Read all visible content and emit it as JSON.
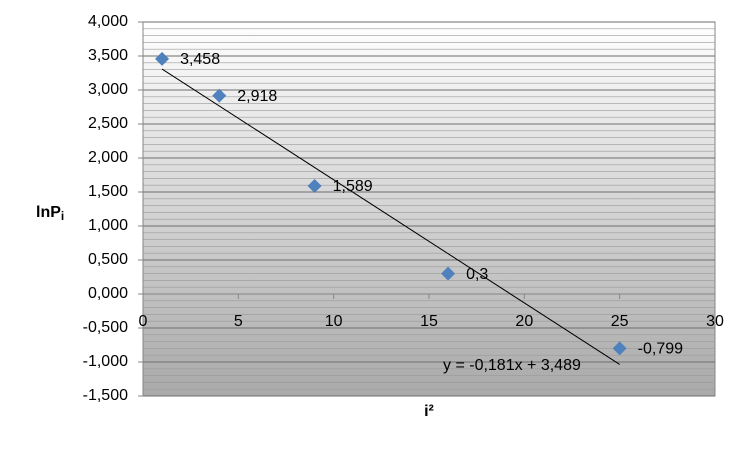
{
  "chart_data": {
    "type": "scatter",
    "x_label": "i²",
    "y_label": "lnP",
    "y_label_sub": "i",
    "series": [
      {
        "name": "lnPi",
        "color": "#4f81bd",
        "x": [
          1,
          4,
          9,
          16,
          25
        ],
        "values": [
          3.458,
          2.918,
          1.589,
          0.3,
          -0.799
        ],
        "value_labels": [
          "3,458",
          "2,918",
          "1,589",
          "0,3",
          "-0,799"
        ]
      }
    ],
    "trendline": {
      "slope": -0.181,
      "intercept": 3.489,
      "label": "y = -0,181x + 3,489",
      "color": "#000000"
    },
    "xlim": [
      0,
      30
    ],
    "xticks": [
      0,
      5,
      10,
      15,
      20,
      25,
      30
    ],
    "ylim": [
      -1.5,
      4
    ],
    "yticks": [
      {
        "value": -1.5,
        "label": "-1,500"
      },
      {
        "value": -1,
        "label": "-1,000"
      },
      {
        "value": -0.5,
        "label": "-0,500"
      },
      {
        "value": 0,
        "label": "0,000"
      },
      {
        "value": 0.5,
        "label": "0,500"
      },
      {
        "value": 1,
        "label": "1,000"
      },
      {
        "value": 1.5,
        "label": "1,500"
      },
      {
        "value": 2,
        "label": "2,000"
      },
      {
        "value": 2.5,
        "label": "2,500"
      },
      {
        "value": 3,
        "label": "3,000"
      },
      {
        "value": 3.5,
        "label": "3,500"
      },
      {
        "value": 4,
        "label": "4,000"
      }
    ],
    "grid": true,
    "y_minor_step": 0.1
  }
}
